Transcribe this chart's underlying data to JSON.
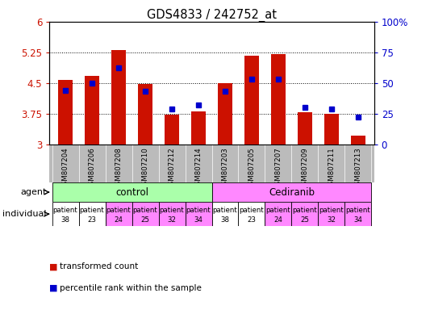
{
  "title": "GDS4833 / 242752_at",
  "categories": [
    "GSM807204",
    "GSM807206",
    "GSM807208",
    "GSM807210",
    "GSM807212",
    "GSM807214",
    "GSM807203",
    "GSM807205",
    "GSM807207",
    "GSM807209",
    "GSM807211",
    "GSM807213"
  ],
  "bar_values": [
    4.57,
    4.68,
    5.3,
    4.47,
    3.73,
    3.8,
    4.5,
    5.17,
    5.2,
    3.78,
    3.75,
    3.2
  ],
  "percentile_values": [
    44,
    50,
    62,
    43,
    29,
    32,
    43,
    53,
    53,
    30,
    29,
    22
  ],
  "ymin": 3.0,
  "ymax": 6.0,
  "yticks": [
    3.0,
    3.75,
    4.5,
    5.25,
    6.0
  ],
  "ytick_labels": [
    "3",
    "3.75",
    "4.5",
    "5.25",
    "6"
  ],
  "right_yticks": [
    0,
    25,
    50,
    75,
    100
  ],
  "right_ytick_labels": [
    "0",
    "25",
    "50",
    "75",
    "100%"
  ],
  "bar_color": "#cc1100",
  "percentile_color": "#0000cc",
  "agent_control_indices": [
    0,
    1,
    2,
    3,
    4,
    5
  ],
  "agent_cediranib_indices": [
    6,
    7,
    8,
    9,
    10,
    11
  ],
  "agent_control_color": "#aaffaa",
  "agent_cediranib_color": "#ff88ff",
  "individual_labels": [
    "patient\n38",
    "patient\n23",
    "patient\n24",
    "patient\n25",
    "patient\n32",
    "patient\n34",
    "patient\n38",
    "patient\n23",
    "patient\n24",
    "patient\n25",
    "patient\n32",
    "patient\n34"
  ],
  "individual_colors": [
    "#ffffff",
    "#ffffff",
    "#ff88ff",
    "#ff88ff",
    "#ff88ff",
    "#ff88ff",
    "#ffffff",
    "#ffffff",
    "#ff88ff",
    "#ff88ff",
    "#ff88ff",
    "#ff88ff"
  ],
  "xticklabel_bg": "#bbbbbb",
  "legend_items": [
    {
      "color": "#cc1100",
      "label": "transformed count"
    },
    {
      "color": "#0000cc",
      "label": "percentile rank within the sample"
    }
  ]
}
